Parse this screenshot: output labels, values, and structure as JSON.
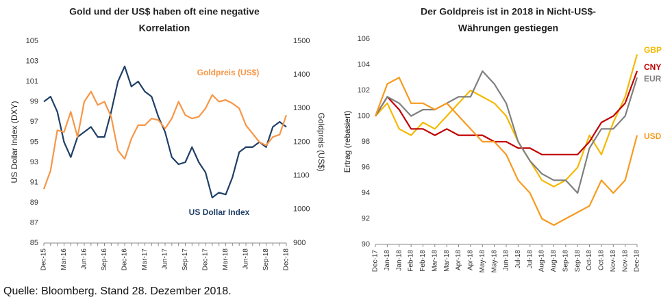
{
  "chart_data": [
    {
      "type": "line",
      "title": [
        "Gold und der US$ haben oft eine negative",
        "Korrelation"
      ],
      "y_label": "US Dollar Index (DXY)",
      "y2_label": "Goldpreis (US$)",
      "categories": [
        "Dec-15",
        null,
        null,
        "Mar-16",
        null,
        null,
        "Jun-16",
        null,
        null,
        "Sep-16",
        null,
        null,
        "Dec-16",
        null,
        null,
        "Mar-17",
        null,
        null,
        "Jun-17",
        null,
        null,
        "Sep-17",
        null,
        null,
        "Dec-17",
        null,
        null,
        "Mar-18",
        null,
        null,
        "Jun-18",
        null,
        null,
        "Sep-18",
        null,
        null,
        "Dec-18"
      ],
      "ylim": [
        85,
        105
      ],
      "yticks": [
        85,
        87,
        89,
        91,
        93,
        95,
        97,
        99,
        101,
        103,
        105
      ],
      "y2lim": [
        900,
        1500
      ],
      "y2ticks": [
        900,
        1000,
        1100,
        1200,
        1300,
        1400,
        1500
      ],
      "grid": false,
      "series": [
        {
          "name": "US Dollar Index",
          "color": "#1f3f66",
          "values": [
            99,
            99.5,
            98,
            95,
            93.5,
            95.5,
            96,
            96.5,
            95.5,
            95.5,
            98,
            101,
            102.5,
            100.5,
            101,
            100,
            99.5,
            97.5,
            96,
            93.5,
            92.8,
            93,
            94.5,
            93,
            92,
            89.5,
            90,
            89.8,
            91.5,
            94,
            94.5,
            94.5,
            95,
            94.5,
            96.5,
            97,
            96.5
          ]
        },
        {
          "name": "Goldpreis (US$)",
          "color": "#f79646",
          "axis": "y2",
          "values": [
            1060,
            1115,
            1235,
            1230,
            1290,
            1215,
            1320,
            1350,
            1310,
            1320,
            1275,
            1175,
            1150,
            1210,
            1250,
            1250,
            1270,
            1265,
            1240,
            1270,
            1320,
            1280,
            1270,
            1275,
            1300,
            1340,
            1320,
            1325,
            1315,
            1300,
            1250,
            1225,
            1200,
            1190,
            1215,
            1222,
            1280
          ]
        }
      ]
    },
    {
      "type": "line",
      "title": [
        "Der Goldpreis ist in 2018 in Nicht-US$-",
        "Währungen gestiegen"
      ],
      "y_label": "Ertrag (rebasiert)",
      "categories": [
        "Dec-17",
        "Jan-18",
        "Jan-18",
        "Feb-18",
        "Feb-18",
        "Mar-18",
        "Mar-18",
        "Apr-18",
        "Apr-18",
        "May-18",
        "May-18",
        "Jun-18",
        "Jul-18",
        "Jul-18",
        "Aug-18",
        "Aug-18",
        "Sep-18",
        "Sep-18",
        "Oct-18",
        "Oct-18",
        "Nov-18",
        "Nov-18",
        "Dec-18"
      ],
      "ylim": [
        90,
        106
      ],
      "yticks": [
        90,
        92,
        94,
        96,
        98,
        100,
        102,
        104,
        106
      ],
      "grid": false,
      "series": [
        {
          "name": "GBP",
          "color": "#f5b800",
          "values": [
            100,
            101,
            99,
            98.5,
            99.5,
            99,
            100,
            101,
            102,
            101.5,
            101,
            100,
            98,
            96.5,
            95,
            94.5,
            95,
            96,
            98.5,
            97,
            99.5,
            101.5,
            104.8
          ]
        },
        {
          "name": "CNY",
          "color": "#c00000",
          "values": [
            100,
            101.5,
            100.5,
            99,
            99,
            98.5,
            99,
            98.5,
            98.5,
            98.5,
            98,
            98,
            97.5,
            97.5,
            97,
            97,
            97,
            97,
            98,
            99.5,
            100,
            101,
            103.5
          ]
        },
        {
          "name": "EUR",
          "color": "#7f7f7f",
          "values": [
            100,
            101.5,
            101,
            100,
            100.5,
            100.5,
            101,
            101.5,
            101.5,
            103.5,
            102.5,
            101,
            98,
            96.5,
            95.5,
            95,
            95,
            94,
            97.5,
            99,
            99,
            100,
            103
          ]
        },
        {
          "name": "USD",
          "color": "#f79a1e",
          "values": [
            100,
            102.5,
            103,
            101,
            101,
            100.5,
            101,
            100,
            99,
            98,
            98,
            97,
            95,
            94,
            92,
            91.5,
            92,
            92.5,
            93,
            95,
            94,
            95,
            98.5
          ]
        }
      ]
    }
  ],
  "footer": "Quelle: Bloomberg. Stand 28. Dezember 2018."
}
